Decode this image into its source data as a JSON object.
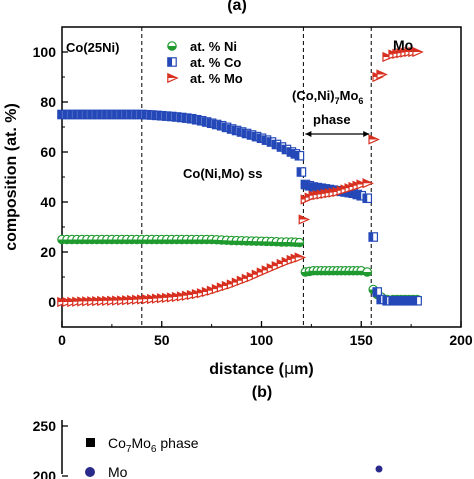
{
  "top_panel_label": "(a)",
  "chart_data": [
    {
      "type": "scatter",
      "panel": "(a)",
      "xlabel_prefix": "distance (",
      "xlabel_mu": "μ",
      "xlabel_suffix": "m)",
      "ylabel": "composition (at. %)",
      "xlim": [
        0,
        200
      ],
      "ylim": [
        -10,
        110
      ],
      "xticks": [
        0,
        50,
        100,
        150,
        200
      ],
      "yticks": [
        0,
        20,
        40,
        60,
        80,
        100
      ],
      "grid": false,
      "legend_position": "top-left",
      "annotations": {
        "sample": "Co(25Ni)",
        "mo": "Mo",
        "phase_base": "(Co,Ni)",
        "phase_sub1": "7",
        "phase_mid": "Mo",
        "phase_sub2": "6",
        "phase_word": "phase",
        "ss": "Co(Ni,Mo) ss"
      },
      "vlines": [
        40,
        121,
        155
      ],
      "series": [
        {
          "name": "at. % Ni",
          "marker": "circle-half",
          "color": "#1f9a2f",
          "points": [
            [
              0,
              25
            ],
            [
              5,
              25
            ],
            [
              10,
              25
            ],
            [
              15,
              25
            ],
            [
              20,
              25
            ],
            [
              25,
              25
            ],
            [
              30,
              25
            ],
            [
              35,
              25
            ],
            [
              40,
              25
            ],
            [
              45,
              25
            ],
            [
              50,
              25
            ],
            [
              55,
              25
            ],
            [
              60,
              25
            ],
            [
              65,
              25
            ],
            [
              70,
              25
            ],
            [
              75,
              25
            ],
            [
              80,
              24.8
            ],
            [
              85,
              24.6
            ],
            [
              90,
              24.5
            ],
            [
              95,
              24.4
            ],
            [
              100,
              24.3
            ],
            [
              105,
              24.2
            ],
            [
              110,
              24
            ],
            [
              115,
              24
            ],
            [
              119,
              23.8
            ],
            [
              122,
              12
            ],
            [
              126,
              12.5
            ],
            [
              130,
              12.5
            ],
            [
              134,
              12.5
            ],
            [
              138,
              12.5
            ],
            [
              142,
              12.5
            ],
            [
              146,
              12.5
            ],
            [
              150,
              12.5
            ],
            [
              153,
              12
            ],
            [
              156,
              5
            ],
            [
              158,
              3
            ],
            [
              160,
              2
            ],
            [
              163,
              1
            ],
            [
              166,
              1
            ],
            [
              170,
              1
            ],
            [
              174,
              1
            ],
            [
              178,
              1
            ]
          ]
        },
        {
          "name": "at. % Co",
          "marker": "square-half",
          "color": "#2448b8",
          "points": [
            [
              0,
              75
            ],
            [
              5,
              75
            ],
            [
              10,
              75
            ],
            [
              15,
              75
            ],
            [
              20,
              75
            ],
            [
              25,
              75
            ],
            [
              30,
              75
            ],
            [
              35,
              75
            ],
            [
              40,
              75
            ],
            [
              45,
              74.8
            ],
            [
              50,
              74.5
            ],
            [
              55,
              74.2
            ],
            [
              60,
              73.8
            ],
            [
              65,
              73.3
            ],
            [
              70,
              72.5
            ],
            [
              75,
              71.5
            ],
            [
              80,
              70.5
            ],
            [
              85,
              69.2
            ],
            [
              90,
              68
            ],
            [
              95,
              66.8
            ],
            [
              100,
              65.5
            ],
            [
              105,
              64
            ],
            [
              110,
              62
            ],
            [
              115,
              60
            ],
            [
              119,
              58.5
            ],
            [
              120,
              52
            ],
            [
              122,
              47
            ],
            [
              126,
              46
            ],
            [
              130,
              45.5
            ],
            [
              134,
              45
            ],
            [
              138,
              44.5
            ],
            [
              142,
              44
            ],
            [
              146,
              43.5
            ],
            [
              150,
              42.5
            ],
            [
              153,
              41.5
            ],
            [
              156,
              26
            ],
            [
              158,
              4
            ],
            [
              160,
              1
            ],
            [
              163,
              0.5
            ],
            [
              166,
              0.5
            ],
            [
              170,
              0.5
            ],
            [
              174,
              0.5
            ],
            [
              178,
              0.5
            ]
          ]
        },
        {
          "name": "at. % Mo",
          "marker": "triangle-right-half",
          "color": "#d83020",
          "points": [
            [
              0,
              0
            ],
            [
              5,
              0
            ],
            [
              10,
              0.2
            ],
            [
              15,
              0.3
            ],
            [
              20,
              0.4
            ],
            [
              25,
              0.5
            ],
            [
              30,
              0.6
            ],
            [
              35,
              0.8
            ],
            [
              40,
              1
            ],
            [
              45,
              1.2
            ],
            [
              50,
              1.5
            ],
            [
              55,
              1.8
            ],
            [
              60,
              2.2
            ],
            [
              65,
              2.8
            ],
            [
              70,
              3.5
            ],
            [
              75,
              4.5
            ],
            [
              80,
              5.8
            ],
            [
              85,
              7
            ],
            [
              90,
              8.5
            ],
            [
              95,
              10
            ],
            [
              100,
              11.8
            ],
            [
              105,
              13.5
            ],
            [
              110,
              15.2
            ],
            [
              115,
              16.8
            ],
            [
              119,
              17.8
            ],
            [
              121,
              33
            ],
            [
              122,
              41
            ],
            [
              126,
              42.5
            ],
            [
              130,
              43
            ],
            [
              134,
              43.5
            ],
            [
              138,
              44
            ],
            [
              142,
              45
            ],
            [
              146,
              46
            ],
            [
              150,
              47
            ],
            [
              153,
              47.5
            ],
            [
              156,
              65
            ],
            [
              158,
              90
            ],
            [
              160,
              91
            ],
            [
              163,
              98
            ],
            [
              166,
              99
            ],
            [
              170,
              99.5
            ],
            [
              174,
              100
            ],
            [
              178,
              100
            ]
          ]
        }
      ]
    },
    {
      "type": "scatter",
      "panel": "(b)",
      "yticks_visible": [
        250,
        200
      ],
      "legend": [
        {
          "name_base": "Co",
          "name_sub1": "7",
          "name_mid": "Mo",
          "name_sub2": "6",
          "name_tail": " phase",
          "marker": "square",
          "color": "#000000"
        },
        {
          "name_base": "Mo",
          "marker": "circle",
          "color": "#2a2a8a"
        }
      ]
    }
  ]
}
